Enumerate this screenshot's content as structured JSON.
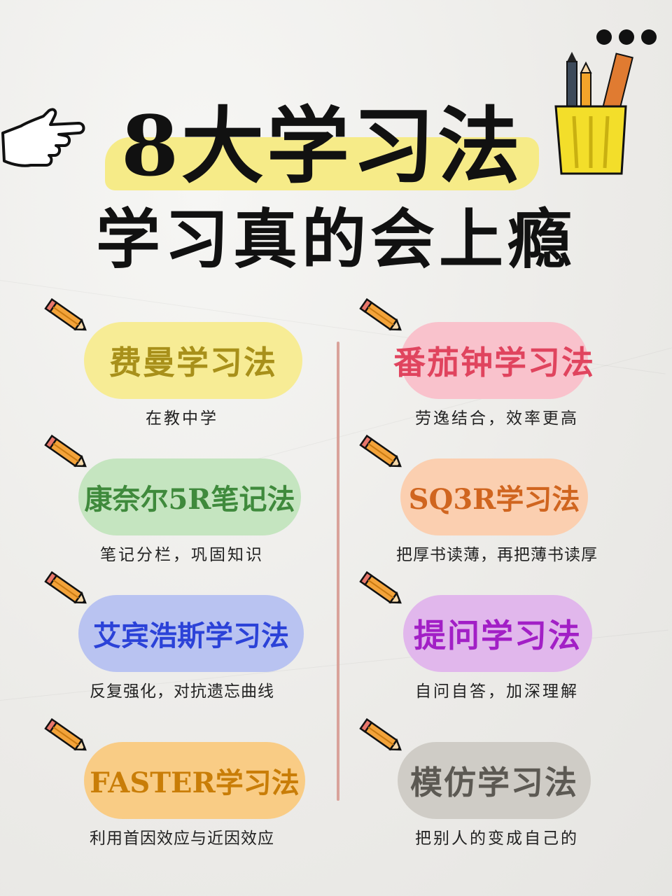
{
  "title": {
    "line1": "8大学习法",
    "line2": "学习真的会上瘾"
  },
  "icons": [
    "more-dots-icon",
    "pointing-hand-icon",
    "pencil-cup-icon",
    "pencil-icon"
  ],
  "methods": [
    {
      "name": "费曼学习法",
      "desc": "在教中学",
      "bg": "#f7ec95",
      "fg": "#a8901a"
    },
    {
      "name": "番茄钟学习法",
      "desc": "劳逸结合，效率更高",
      "bg": "#f9c2cc",
      "fg": "#e0445e"
    },
    {
      "name": "康奈尔5R笔记法",
      "desc": "笔记分栏，巩固知识",
      "bg": "#c5e5c0",
      "fg": "#3f8a3c"
    },
    {
      "name": "SQ3R学习法",
      "desc": "把厚书读薄，再把薄书读厚",
      "bg": "#fbcfb0",
      "fg": "#d0651f"
    },
    {
      "name": "艾宾浩斯学习法",
      "desc": "反复强化，对抗遗忘曲线",
      "bg": "#b9c3f1",
      "fg": "#2b42d8"
    },
    {
      "name": "提问学习法",
      "desc": "自问自答，加深理解",
      "bg": "#e1b7ec",
      "fg": "#a21fc6"
    },
    {
      "name": "FASTER学习法",
      "desc": "利用首因效应与近因效应",
      "bg": "#f9cc85",
      "fg": "#c97d07"
    },
    {
      "name": "模仿学习法",
      "desc": "把别人的变成自己的",
      "bg": "#cfccc6",
      "fg": "#5c5953"
    }
  ]
}
